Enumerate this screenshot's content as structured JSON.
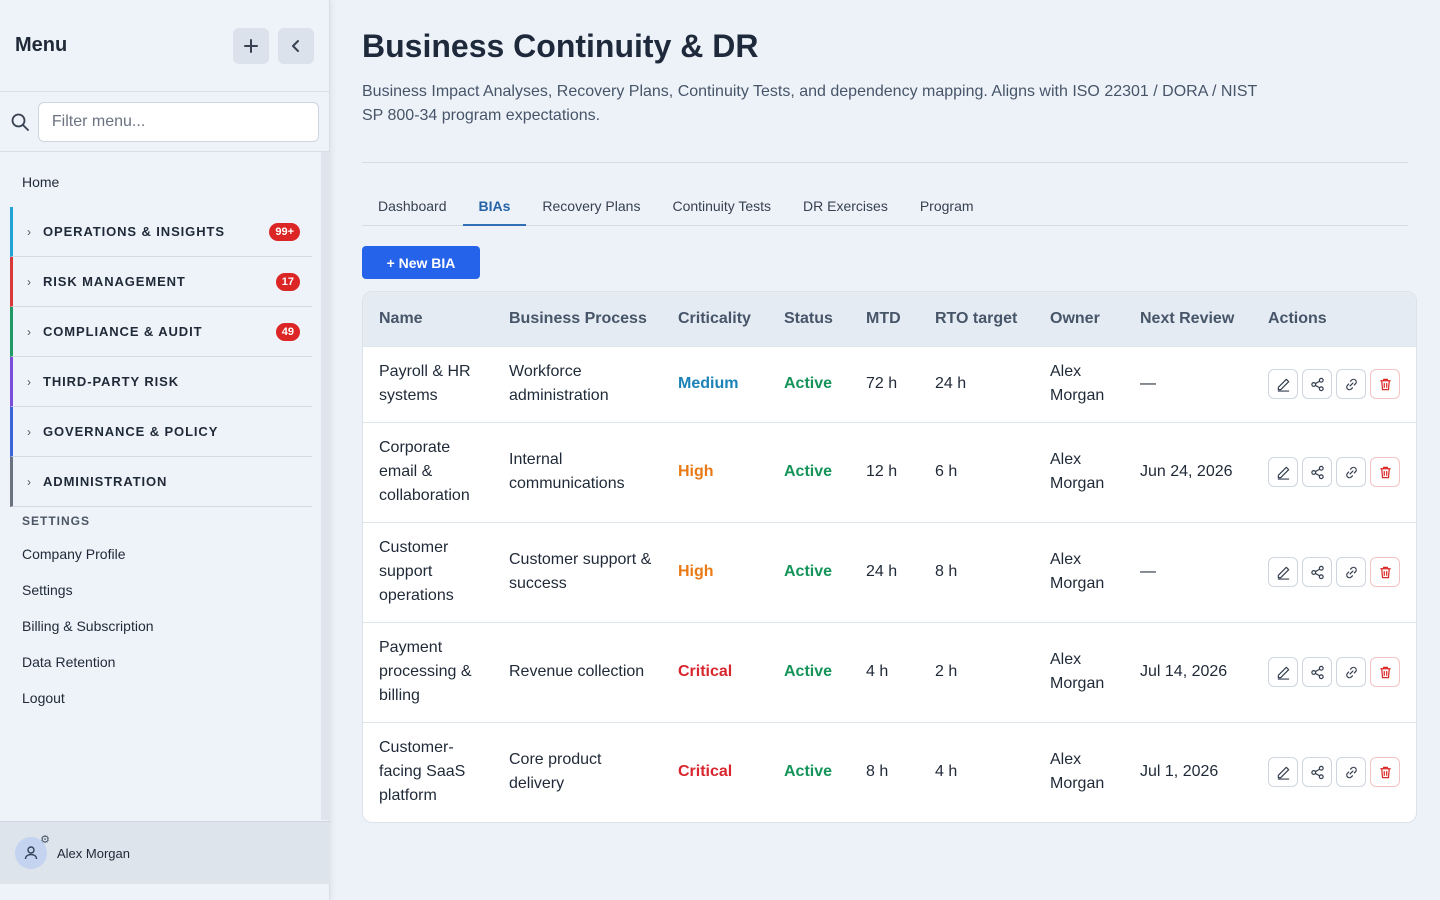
{
  "sidebar": {
    "title": "Menu",
    "search_placeholder": "Filter menu...",
    "home": "Home",
    "groups": [
      {
        "label": "OPERATIONS & INSIGHTS",
        "badge": "99+",
        "color": "#22a3d6"
      },
      {
        "label": "RISK MANAGEMENT",
        "badge": "17",
        "color": "#d83a3a"
      },
      {
        "label": "COMPLIANCE & AUDIT",
        "badge": "49",
        "color": "#1f9a67"
      },
      {
        "label": "THIRD-PARTY RISK",
        "badge": "",
        "color": "#7c4ddb"
      },
      {
        "label": "GOVERNANCE & POLICY",
        "badge": "",
        "color": "#3a64d8"
      },
      {
        "label": "ADMINISTRATION",
        "badge": "",
        "color": "#6b7280"
      }
    ],
    "settings_heading": "SETTINGS",
    "links": [
      "Company Profile",
      "Settings",
      "Billing & Subscription",
      "Data Retention",
      "Logout"
    ],
    "user_name": "Alex Morgan"
  },
  "main": {
    "title": "Business Continuity & DR",
    "description": "Business Impact Analyses, Recovery Plans, Continuity Tests, and dependency mapping. Aligns with ISO 22301 / DORA / NIST SP 800-34 program expectations.",
    "tabs": [
      "Dashboard",
      "BIAs",
      "Recovery Plans",
      "Continuity Tests",
      "DR Exercises",
      "Program"
    ],
    "active_tab": "BIAs",
    "new_button": "+ New BIA"
  },
  "table": {
    "columns": [
      "Name",
      "Business Process",
      "Criticality",
      "Status",
      "MTD",
      "RTO target",
      "Owner",
      "Next Review",
      "Actions"
    ],
    "rows": [
      {
        "name": "Payroll & HR systems",
        "process": "Workforce administration",
        "criticality": "Medium",
        "status": "Active",
        "mtd": "72 h",
        "rto": "24 h",
        "owner": "Alex Morgan",
        "next_review": "—"
      },
      {
        "name": "Corporate email & collaboration",
        "process": "Internal communications",
        "criticality": "High",
        "status": "Active",
        "mtd": "12 h",
        "rto": "6 h",
        "owner": "Alex Morgan",
        "next_review": "Jun 24, 2026"
      },
      {
        "name": "Customer support operations",
        "process": "Customer support & success",
        "criticality": "High",
        "status": "Active",
        "mtd": "24 h",
        "rto": "8 h",
        "owner": "Alex Morgan",
        "next_review": "—"
      },
      {
        "name": "Payment processing & billing",
        "process": "Revenue collection",
        "criticality": "Critical",
        "status": "Active",
        "mtd": "4 h",
        "rto": "2 h",
        "owner": "Alex Morgan",
        "next_review": "Jul 14, 2026"
      },
      {
        "name": "Customer-facing SaaS platform",
        "process": "Core product delivery",
        "criticality": "Critical",
        "status": "Active",
        "mtd": "8 h",
        "rto": "4 h",
        "owner": "Alex Morgan",
        "next_review": "Jul 1, 2026"
      }
    ],
    "action_icons": [
      "edit-icon",
      "share-icon",
      "link-icon",
      "trash-icon"
    ]
  }
}
